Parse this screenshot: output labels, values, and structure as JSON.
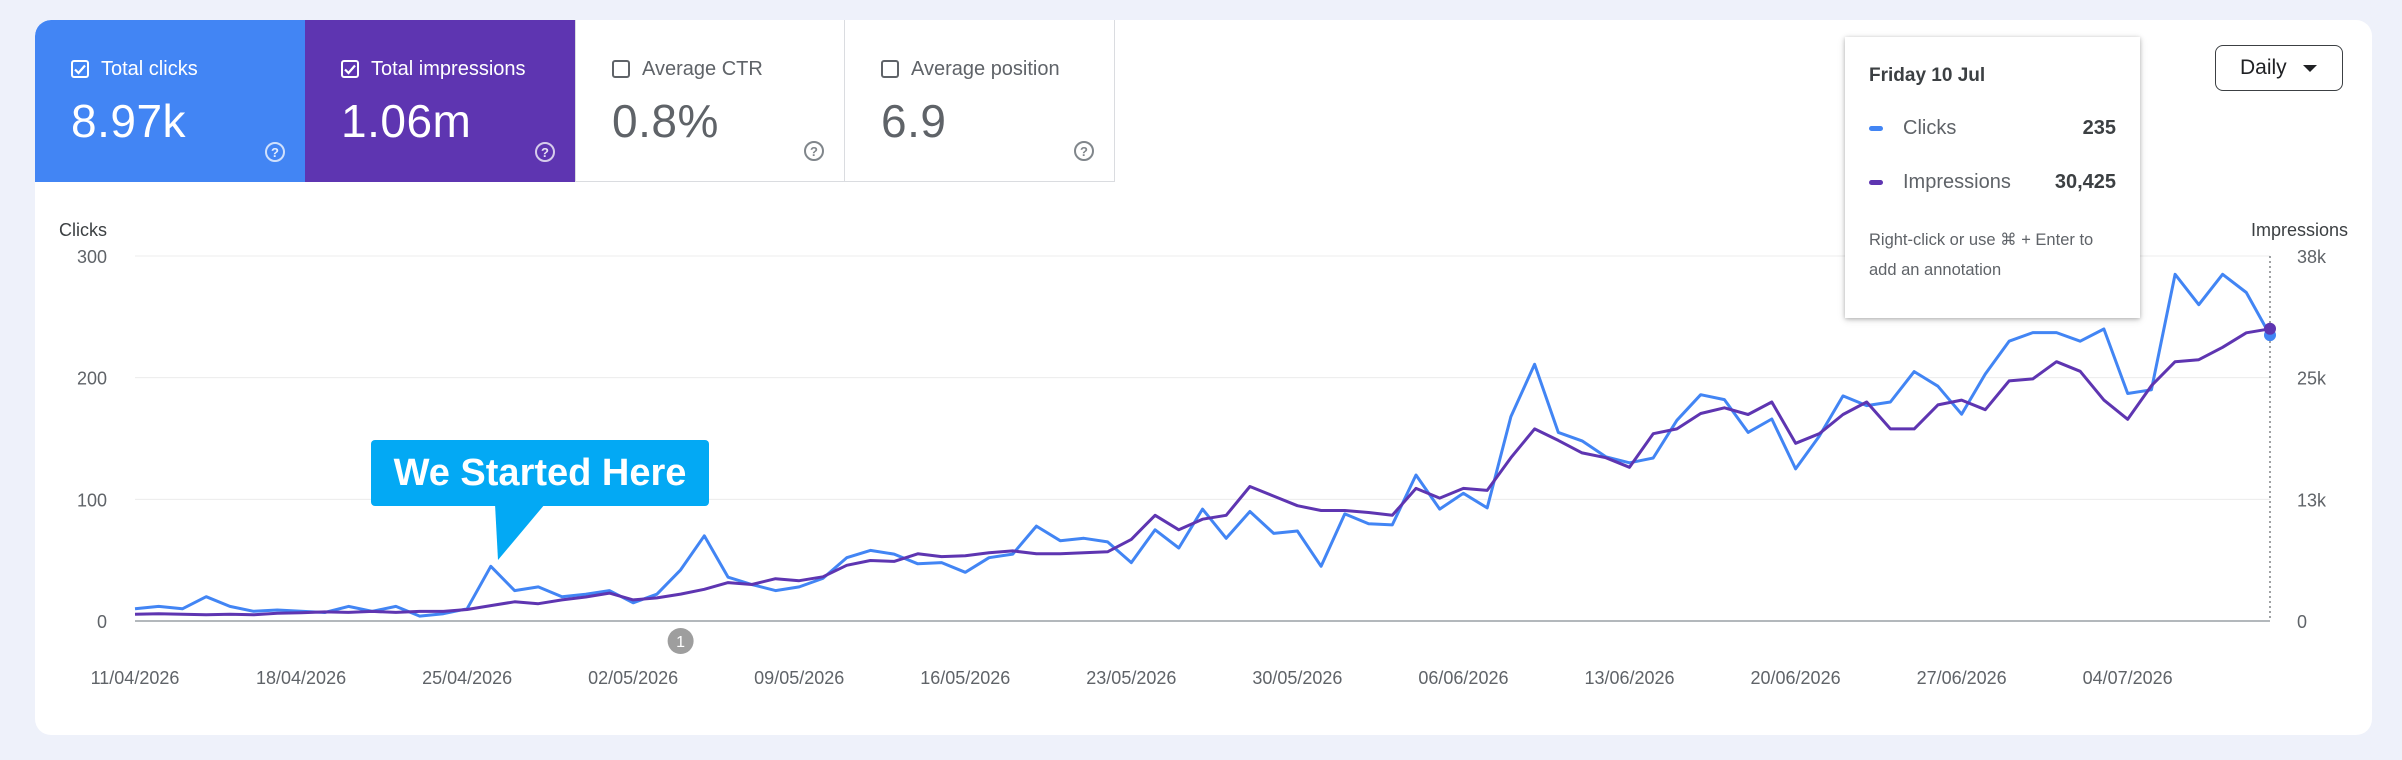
{
  "metrics": [
    {
      "label": "Total clicks",
      "value": "8.97k",
      "checked": true
    },
    {
      "label": "Total impressions",
      "value": "1.06m",
      "checked": true
    },
    {
      "label": "Average CTR",
      "value": "0.8%",
      "checked": false
    },
    {
      "label": "Average position",
      "value": "6.9",
      "checked": false
    }
  ],
  "help_glyph": "?",
  "granularity": {
    "selected": "Daily"
  },
  "tooltip": {
    "date": "Friday 10 Jul",
    "rows": [
      {
        "label": "Clicks",
        "value": "235",
        "color": "#4285f4"
      },
      {
        "label": "Impressions",
        "value": "30,425",
        "color": "#5e35b1"
      }
    ],
    "hint": "Right-click or use ⌘ + Enter to add an annotation"
  },
  "callout": {
    "text": "We Started Here"
  },
  "annotation_marker": "1",
  "chart_data": {
    "type": "line",
    "left_axis": {
      "label": "Clicks",
      "ticks": [
        "0",
        "100",
        "200",
        "300"
      ],
      "range": [
        0,
        300
      ]
    },
    "right_axis": {
      "label": "Impressions",
      "ticks": [
        "0",
        "13k",
        "25k",
        "38k"
      ],
      "range": [
        0,
        38000
      ]
    },
    "x_labels": [
      "11/04/2026",
      "18/04/2026",
      "25/04/2026",
      "02/05/2026",
      "09/05/2026",
      "16/05/2026",
      "23/05/2026",
      "30/05/2026",
      "06/06/2026",
      "13/06/2026",
      "20/06/2026",
      "27/06/2026",
      "04/07/2026"
    ],
    "series": [
      {
        "name": "Clicks",
        "color": "#4285f4",
        "axis": "left",
        "values": [
          10,
          12,
          10,
          20,
          12,
          8,
          9,
          8,
          7,
          12,
          8,
          12,
          4,
          6,
          10,
          45,
          25,
          28,
          20,
          22,
          25,
          15,
          22,
          42,
          70,
          36,
          30,
          25,
          28,
          35,
          52,
          58,
          55,
          47,
          48,
          40,
          52,
          55,
          78,
          66,
          68,
          65,
          48,
          75,
          60,
          92,
          68,
          90,
          72,
          74,
          45,
          88,
          80,
          79,
          120,
          92,
          105,
          93,
          168,
          211,
          155,
          148,
          135,
          130,
          134,
          165,
          186,
          182,
          155,
          166,
          125,
          152,
          185,
          177,
          180,
          205,
          193,
          170,
          203,
          230,
          237,
          237,
          230,
          240,
          187,
          190,
          285,
          260,
          285,
          270,
          235
        ]
      },
      {
        "name": "Impressions",
        "color": "#5e35b1",
        "axis": "right",
        "values": [
          700,
          750,
          700,
          650,
          700,
          650,
          800,
          850,
          950,
          900,
          1000,
          900,
          1000,
          1000,
          1200,
          1600,
          2000,
          1800,
          2200,
          2500,
          2900,
          2200,
          2400,
          2800,
          3300,
          4000,
          3800,
          4400,
          4200,
          4600,
          5800,
          6300,
          6200,
          7000,
          6700,
          6800,
          7100,
          7300,
          7000,
          7000,
          7100,
          7200,
          8500,
          11000,
          9500,
          10600,
          11000,
          14000,
          13000,
          12000,
          11500,
          11500,
          11300,
          11000,
          13800,
          12800,
          13800,
          13600,
          17000,
          20000,
          18800,
          17500,
          17000,
          16000,
          19500,
          20000,
          21600,
          22200,
          21500,
          22800,
          18500,
          19500,
          21500,
          22800,
          20000,
          20000,
          22500,
          23000,
          22000,
          25000,
          25200,
          27000,
          26000,
          23000,
          21000,
          24500,
          27000,
          27200,
          28500,
          30000,
          30425
        ]
      }
    ],
    "hover_index": 90,
    "annotation_index": 23,
    "callout_index": 36
  }
}
